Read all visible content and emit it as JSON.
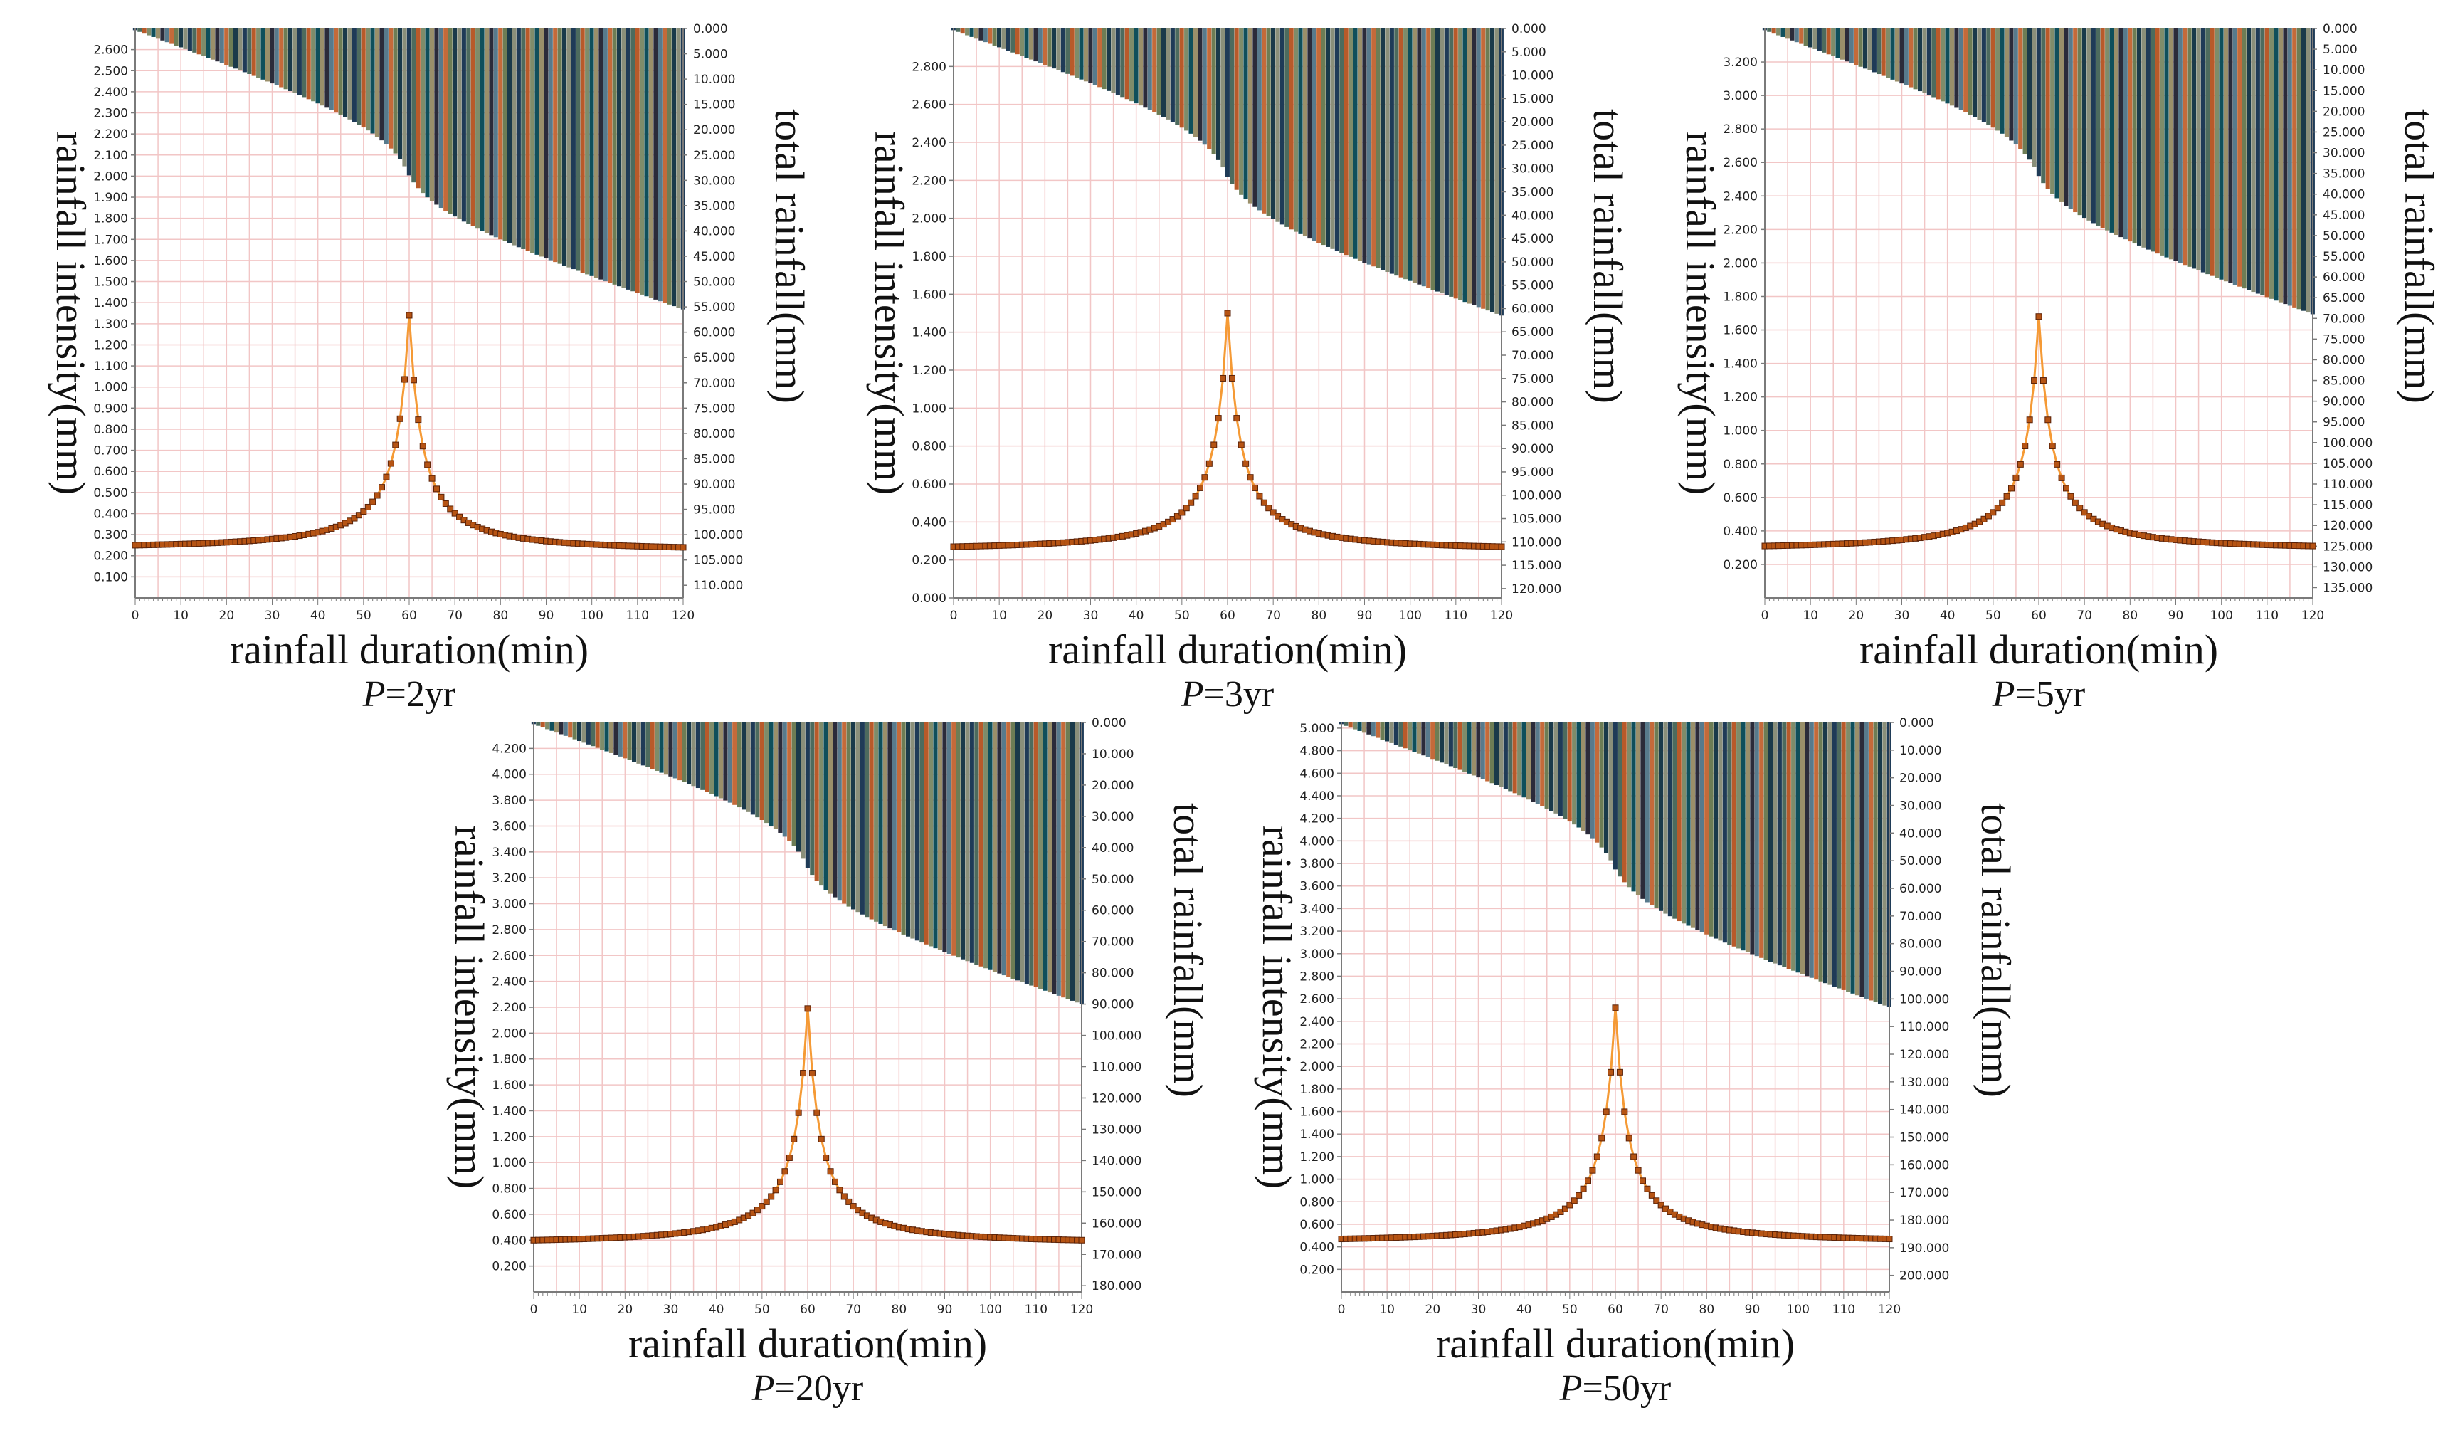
{
  "charts": [
    {
      "id": "p2",
      "caption_var": "P",
      "caption_rest": "=2yr",
      "chart_data": {
        "type": "line+bar",
        "xlabel": "rainfall duration(min)",
        "ylabel_left": "rainfall intensity(mm)",
        "ylabel_right": "total rainfall(mm)",
        "x_range": [
          0,
          120
        ],
        "x_tick_step": 10,
        "left_range": [
          0,
          2.7
        ],
        "left_tick_step": 0.1,
        "left_tick_from": 0.1,
        "left_tick_to": 2.6,
        "right_range": [
          0,
          112.5
        ],
        "right_tick_step": 5,
        "right_tick_to": 110,
        "peak_minute": 60,
        "peak_intensity": 1.34,
        "start_intensity": 0.25,
        "end_intensity": 0.24,
        "cumulative_bar_depth_at_end": 55.5
      }
    },
    {
      "id": "p3",
      "caption_var": "P",
      "caption_rest": "=3yr",
      "chart_data": {
        "type": "line+bar",
        "xlabel": "rainfall duration(min)",
        "ylabel_left": "rainfall intensity(mm)",
        "ylabel_right": "total rainfall(mm)",
        "x_range": [
          0,
          120
        ],
        "x_tick_step": 10,
        "left_range": [
          0,
          3.0
        ],
        "left_tick_step": 0.2,
        "left_tick_from": 0,
        "left_tick_to": 2.8,
        "right_range": [
          0,
          122
        ],
        "right_tick_step": 5,
        "right_tick_to": 120,
        "peak_minute": 60,
        "peak_intensity": 1.5,
        "start_intensity": 0.27,
        "end_intensity": 0.27,
        "cumulative_bar_depth_at_end": 61.5
      }
    },
    {
      "id": "p5",
      "caption_var": "P",
      "caption_rest": "=5yr",
      "chart_data": {
        "type": "line+bar",
        "xlabel": "rainfall duration(min)",
        "ylabel_left": "rainfall intensity(mm)",
        "ylabel_right": "total rainfall(mm)",
        "x_range": [
          0,
          120
        ],
        "x_tick_step": 10,
        "left_range": [
          0,
          3.4
        ],
        "left_tick_step": 0.2,
        "left_tick_from": 0.2,
        "left_tick_to": 3.2,
        "right_range": [
          0,
          137.5
        ],
        "right_tick_step": 5,
        "right_tick_to": 135,
        "peak_minute": 60,
        "peak_intensity": 1.68,
        "start_intensity": 0.31,
        "end_intensity": 0.31,
        "cumulative_bar_depth_at_end": 69
      }
    },
    {
      "id": "p20",
      "caption_var": "P",
      "caption_rest": "=20yr",
      "chart_data": {
        "type": "line+bar",
        "xlabel": "rainfall duration(min)",
        "ylabel_left": "rainfall intensity(mm)",
        "ylabel_right": "total rainfall(mm)",
        "x_range": [
          0,
          120
        ],
        "x_tick_step": 10,
        "left_range": [
          0,
          4.4
        ],
        "left_tick_step": 0.2,
        "left_tick_from": 0.2,
        "left_tick_to": 4.2,
        "right_range": [
          0,
          182
        ],
        "right_tick_step": 10,
        "right_tick_to": 180,
        "peak_minute": 60,
        "peak_intensity": 2.19,
        "start_intensity": 0.4,
        "end_intensity": 0.4,
        "cumulative_bar_depth_at_end": 90
      }
    },
    {
      "id": "p50",
      "caption_var": "P",
      "caption_rest": "=50yr",
      "chart_data": {
        "type": "line+bar",
        "xlabel": "rainfall duration(min)",
        "ylabel_left": "rainfall intensity(mm)",
        "ylabel_right": "total rainfall(mm)",
        "x_range": [
          0,
          120
        ],
        "x_tick_step": 10,
        "left_range": [
          0,
          5.05
        ],
        "left_tick_step": 0.2,
        "left_tick_from": 0.2,
        "left_tick_to": 5.0,
        "right_range": [
          0,
          206
        ],
        "right_tick_step": 10,
        "right_tick_to": 200,
        "peak_minute": 60,
        "peak_intensity": 2.52,
        "start_intensity": 0.47,
        "end_intensity": 0.47,
        "cumulative_bar_depth_at_end": 103
      }
    }
  ],
  "colors": {
    "grid": "#f2c6c6",
    "line": "#f59a35",
    "marker_fill": "#b65414",
    "marker_stroke": "#5a2208",
    "bar_palette": [
      "#1f3b57",
      "#4d6b5e",
      "#b85a2a",
      "#7e8c6a",
      "#0f4f5b",
      "#9a8f6a",
      "#2b2b3a",
      "#587a8c",
      "#c46a3a",
      "#6d7d55",
      "#1a3a4a",
      "#8a8f7a"
    ]
  }
}
